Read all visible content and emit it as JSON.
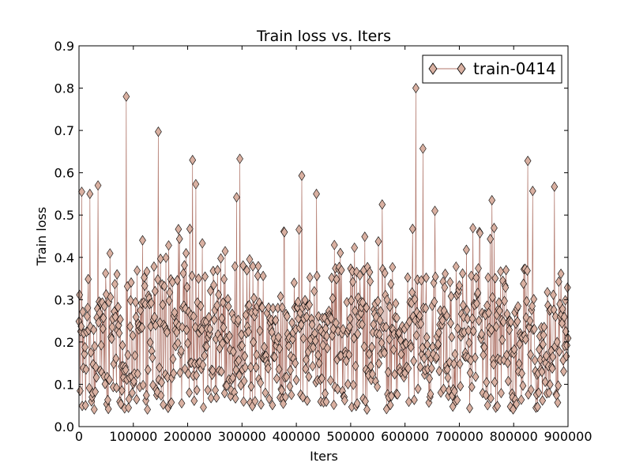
{
  "chart_data": {
    "type": "line",
    "title": "Train loss  vs. Iters",
    "xlabel": "Iters",
    "ylabel": "Train loss",
    "xlim": [
      0,
      900000
    ],
    "ylim": [
      0.0,
      0.9
    ],
    "xticks": [
      "0",
      "100000",
      "200000",
      "300000",
      "400000",
      "500000",
      "600000",
      "700000",
      "800000",
      "900000"
    ],
    "yticks": [
      "0.0",
      "0.1",
      "0.2",
      "0.3",
      "0.4",
      "0.5",
      "0.6",
      "0.7",
      "0.8",
      "0.9"
    ],
    "grid": false,
    "legend_position": "top-right",
    "series": [
      {
        "name": "train-0414",
        "marker": "diamond",
        "line_color": "#b0766a",
        "marker_fill": "#d9b0a1",
        "marker_edge": "#000000",
        "x_step": 1000,
        "peaks": [
          {
            "x": 87000,
            "y": 0.78
          },
          {
            "x": 146000,
            "y": 0.697
          },
          {
            "x": 209000,
            "y": 0.63
          },
          {
            "x": 296000,
            "y": 0.633
          },
          {
            "x": 410000,
            "y": 0.593
          },
          {
            "x": 620000,
            "y": 0.8
          },
          {
            "x": 633000,
            "y": 0.657
          },
          {
            "x": 826000,
            "y": 0.628
          },
          {
            "x": 35000,
            "y": 0.57
          },
          {
            "x": 215000,
            "y": 0.573
          },
          {
            "x": 437000,
            "y": 0.55
          },
          {
            "x": 875000,
            "y": 0.567
          },
          {
            "x": 558000,
            "y": 0.525
          },
          {
            "x": 760000,
            "y": 0.535
          },
          {
            "x": 835000,
            "y": 0.557
          },
          {
            "x": 290000,
            "y": 0.542
          },
          {
            "x": 5000,
            "y": 0.555
          },
          {
            "x": 20000,
            "y": 0.55
          },
          {
            "x": 655000,
            "y": 0.51
          }
        ]
      }
    ]
  }
}
